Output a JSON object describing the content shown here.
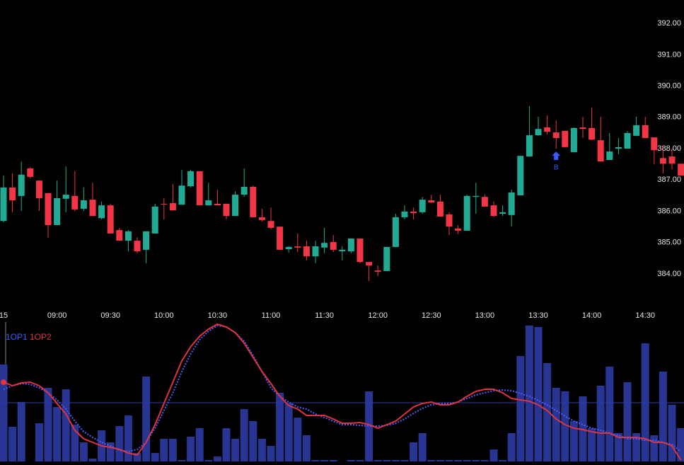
{
  "chart_data": [
    {
      "type": "candlestick",
      "categories": [
        "15",
        null,
        null,
        null,
        null,
        null,
        "09:00",
        null,
        null,
        null,
        null,
        null,
        "09:30",
        null,
        null,
        null,
        null,
        null,
        "10:00",
        null,
        null,
        null,
        null,
        null,
        "10:30",
        null,
        null,
        null,
        null,
        null,
        "11:00",
        null,
        null,
        null,
        null,
        null,
        "11:30",
        null,
        null,
        null,
        null,
        null,
        "12:00",
        null,
        null,
        null,
        null,
        null,
        "12:30",
        null,
        null,
        null,
        null,
        null,
        "13:00",
        null,
        null,
        null,
        null,
        null,
        "13:30",
        null,
        null,
        null,
        null,
        null,
        "14:00",
        null,
        null,
        null,
        null,
        null,
        "14:30",
        null,
        null,
        null,
        null
      ],
      "open": [
        385.69,
        386.76,
        386.49,
        387.37,
        386.98,
        386.58,
        385.56,
        386.4,
        386.49,
        386.08,
        386.37,
        385.78,
        386.19,
        385.4,
        385.06,
        385.06,
        384.77,
        385.29,
        386.24,
        386.26,
        386.21,
        386.8,
        387.28,
        386.19,
        386.24,
        386.24,
        385.85,
        386.53,
        386.78,
        385.81,
        385.69,
        385.51,
        384.79,
        384.88,
        384.88,
        384.56,
        384.84,
        385.02,
        384.72,
        384.72,
        385.13,
        384.38,
        384.11,
        384.09,
        384.86,
        385.81,
        385.99,
        385.97,
        386.35,
        386.31,
        385.9,
        385.45,
        385.38,
        386.46,
        386.46,
        386.19,
        385.92,
        385.88,
        386.51,
        387.75,
        388.43,
        388.68,
        388.52,
        388.57,
        387.89,
        388.68,
        388.66,
        388.27,
        387.64,
        388.0,
        388.0,
        388.41,
        388.75,
        388.36,
        387.7,
        387.75,
        387.52
      ],
      "high": [
        387.14,
        387.21,
        387.59,
        387.41,
        386.98,
        386.58,
        386.98,
        387.43,
        387.28,
        386.76,
        386.91,
        386.31,
        386.24,
        385.47,
        385.4,
        385.17,
        385.36,
        386.24,
        386.42,
        386.87,
        387.32,
        387.32,
        387.28,
        386.91,
        386.69,
        386.24,
        386.64,
        387.37,
        386.82,
        386.08,
        386.12,
        385.51,
        384.88,
        385.29,
        385.06,
        385.06,
        385.47,
        385.24,
        384.88,
        385.13,
        385.13,
        384.38,
        384.27,
        384.86,
        385.92,
        386.19,
        386.12,
        386.46,
        386.53,
        386.53,
        385.97,
        385.56,
        386.53,
        386.91,
        386.53,
        386.31,
        386.19,
        386.69,
        387.77,
        389.36,
        389.02,
        389.06,
        388.9,
        388.57,
        388.68,
        389.02,
        389.31,
        389.02,
        388.5,
        388.34,
        388.56,
        389.02,
        389.02,
        388.36,
        388.11,
        388.0,
        387.52
      ],
      "low": [
        385.65,
        385.97,
        386.01,
        387.05,
        386.01,
        385.15,
        385.56,
        385.97,
        386.01,
        386.01,
        385.85,
        385.74,
        385.29,
        385.06,
        384.72,
        384.66,
        384.34,
        385.29,
        385.74,
        386.03,
        386.21,
        386.76,
        386.19,
        386.19,
        386.19,
        385.74,
        385.85,
        386.46,
        385.81,
        385.67,
        385.42,
        384.77,
        384.68,
        384.7,
        384.43,
        384.34,
        384.66,
        384.7,
        384.43,
        384.66,
        384.34,
        383.77,
        383.93,
        384.09,
        384.86,
        385.74,
        385.74,
        385.92,
        386.26,
        385.83,
        385.24,
        385.27,
        385.38,
        385.92,
        386.15,
        385.81,
        385.85,
        385.51,
        386.51,
        387.75,
        388.41,
        388.45,
        388.0,
        388.05,
        387.89,
        388.34,
        388.27,
        387.59,
        387.64,
        387.82,
        388.0,
        388.41,
        388.34,
        387.5,
        387.21,
        387.34,
        387.14
      ],
      "close": [
        386.76,
        386.35,
        387.17,
        387.1,
        386.42,
        385.56,
        386.42,
        386.53,
        386.06,
        386.35,
        385.85,
        386.19,
        385.29,
        385.06,
        385.36,
        384.72,
        385.36,
        386.15,
        386.22,
        386.03,
        386.82,
        387.28,
        386.19,
        386.35,
        386.19,
        385.85,
        386.53,
        386.78,
        385.81,
        385.72,
        385.47,
        384.77,
        384.86,
        384.84,
        384.56,
        384.88,
        384.99,
        384.77,
        384.77,
        385.13,
        384.38,
        384.27,
        384.07,
        384.86,
        385.81,
        385.99,
        385.94,
        386.37,
        386.28,
        385.83,
        385.51,
        385.38,
        386.49,
        386.49,
        386.15,
        385.85,
        385.97,
        386.6,
        387.77,
        388.43,
        388.63,
        388.54,
        388.34,
        388.05,
        388.66,
        388.63,
        388.29,
        387.59,
        387.91,
        388.05,
        388.5,
        388.75,
        388.34,
        387.95,
        387.52,
        387.52,
        387.14
      ],
      "up_color": "#22ab94",
      "down_color": "#f23645",
      "ylim": [
        383.14,
        392.75
      ],
      "yticks": [
        {
          "value": 392,
          "label": "392.00"
        },
        {
          "value": 391,
          "label": "391.00"
        },
        {
          "value": 390,
          "label": "390.00"
        },
        {
          "value": 389,
          "label": "389.00"
        },
        {
          "value": 388,
          "label": "388.00"
        },
        {
          "value": 387,
          "label": "387.00"
        },
        {
          "value": 386,
          "label": "386.00"
        },
        {
          "value": 385,
          "label": "385.00"
        },
        {
          "value": 384,
          "label": "384.00"
        }
      ],
      "annotations": [
        {
          "index": 62,
          "label": "B",
          "color": "#3a5bff"
        }
      ]
    },
    {
      "type": "indicator",
      "values": [
        137,
        49,
        84,
        0,
        54,
        104,
        77,
        102,
        52,
        27,
        4,
        44,
        27,
        50,
        65,
        12,
        120,
        12,
        32,
        32,
        2,
        35,
        47,
        2,
        7,
        47,
        32,
        74,
        57,
        32,
        22,
        97,
        82,
        62,
        37,
        2,
        2,
        2,
        0,
        2,
        2,
        99,
        2,
        2,
        2,
        2,
        27,
        40,
        2,
        2,
        2,
        2,
        2,
        2,
        2,
        17,
        2,
        40,
        149,
        192,
        190,
        139,
        104,
        99,
        57,
        92,
        47,
        107,
        134,
        40,
        112,
        40,
        167,
        37,
        127,
        80,
        47
      ],
      "color": "#283593",
      "ylim": [
        0,
        200
      ],
      "hline": 83,
      "series": [
        {
          "name": "1OP1",
          "color": "#4a5fff",
          "style": "dotted",
          "values": [
            102,
            107,
            110,
            109,
            104,
            97,
            87,
            74,
            57,
            42,
            34,
            27,
            22,
            16,
            14,
            17,
            27,
            47,
            72,
            97,
            127,
            152,
            172,
            184,
            192,
            190,
            182,
            170,
            150,
            127,
            104,
            92,
            84,
            77,
            74,
            67,
            62,
            57,
            52,
            52,
            51,
            50,
            50,
            51,
            54,
            60,
            68,
            75,
            80,
            82,
            82,
            84,
            89,
            94,
            97,
            100,
            101,
            100,
            96,
            92,
            86,
            80,
            72,
            64,
            57,
            52,
            47,
            44,
            40,
            37,
            32,
            32,
            30,
            30,
            27,
            24,
            14
          ]
        },
        {
          "name": "1OP2",
          "color": "#e0323f",
          "style": "solid",
          "values": [
            112,
            107,
            111,
            112,
            107,
            97,
            82,
            67,
            44,
            32,
            27,
            22,
            20,
            17,
            12,
            9,
            27,
            52,
            82,
            112,
            142,
            162,
            177,
            187,
            194,
            190,
            182,
            167,
            147,
            127,
            110,
            92,
            79,
            74,
            65,
            65,
            65,
            60,
            54,
            54,
            55,
            52,
            47,
            52,
            57,
            67,
            77,
            82,
            84,
            80,
            80,
            84,
            92,
            99,
            102,
            102,
            97,
            89,
            87,
            85,
            80,
            72,
            60,
            52,
            47,
            45,
            42,
            40,
            40,
            34,
            34,
            34,
            32,
            27,
            27,
            22,
            2
          ]
        }
      ]
    }
  ]
}
